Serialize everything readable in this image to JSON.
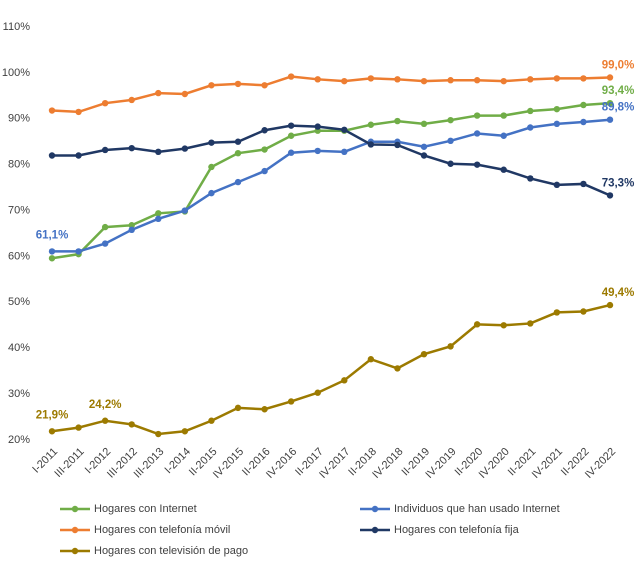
{
  "chart_data": {
    "type": "line",
    "categories": [
      "I-2011",
      "III-2011",
      "I-2012",
      "III-2012",
      "III-2013",
      "I-2014",
      "II-2015",
      "IV-2015",
      "II-2016",
      "IV-2016",
      "II-2017",
      "IV-2017",
      "II-2018",
      "IV-2018",
      "II-2019",
      "IV-2019",
      "II-2020",
      "IV-2020",
      "II-2021",
      "IV-2021",
      "II-2022",
      "IV-2022"
    ],
    "ylim": [
      20,
      110
    ],
    "yticks": [
      {
        "value": 20,
        "label": "20%"
      },
      {
        "value": 30,
        "label": "30%"
      },
      {
        "value": 40,
        "label": "40%"
      },
      {
        "value": 50,
        "label": "50%"
      },
      {
        "value": 60,
        "label": "60%"
      },
      {
        "value": 70,
        "label": "70%"
      },
      {
        "value": 80,
        "label": "80%"
      },
      {
        "value": 90,
        "label": "90%"
      },
      {
        "value": 100,
        "label": "100%"
      },
      {
        "value": 110,
        "label": "110%"
      }
    ],
    "legend": "bottom",
    "series": [
      {
        "name": "Hogares con Internet",
        "color": "#70ad47",
        "values": [
          59.6,
          60.5,
          66.4,
          66.8,
          69.4,
          69.8,
          79.5,
          82.5,
          83.3,
          86.3,
          87.4,
          87.4,
          88.7,
          89.5,
          88.9,
          89.7,
          90.7,
          90.7,
          91.7,
          92.1,
          93.0,
          93.4
        ],
        "value_labels": [
          null,
          null,
          null,
          null,
          null,
          null,
          null,
          null,
          null,
          null,
          null,
          null,
          null,
          null,
          null,
          null,
          null,
          null,
          null,
          null,
          null,
          "93,4%"
        ]
      },
      {
        "name": "Individuos que han usado Internet",
        "color": "#4472c4",
        "values": [
          61.1,
          61.1,
          62.8,
          65.8,
          68.2,
          70.0,
          73.8,
          76.2,
          78.6,
          82.6,
          83.0,
          82.8,
          85.0,
          85.0,
          83.9,
          85.2,
          86.8,
          86.3,
          88.1,
          88.9,
          89.3,
          89.8
        ],
        "value_labels": [
          "61,1%",
          null,
          null,
          null,
          null,
          null,
          null,
          null,
          null,
          null,
          null,
          null,
          null,
          null,
          null,
          null,
          null,
          null,
          null,
          null,
          null,
          "89,8%"
        ]
      },
      {
        "name": "Hogares con telefonía móvil",
        "color": "#ed7d31",
        "values": [
          91.8,
          91.5,
          93.4,
          94.1,
          95.6,
          95.4,
          97.3,
          97.6,
          97.3,
          99.2,
          98.6,
          98.2,
          98.8,
          98.6,
          98.2,
          98.4,
          98.4,
          98.2,
          98.6,
          98.8,
          98.8,
          99.0
        ],
        "value_labels": [
          null,
          null,
          null,
          null,
          null,
          null,
          null,
          null,
          null,
          null,
          null,
          null,
          null,
          null,
          null,
          null,
          null,
          null,
          null,
          null,
          null,
          "99,0%"
        ]
      },
      {
        "name": "Hogares con telefonía fija",
        "color": "#203864",
        "values": [
          82.0,
          82.0,
          83.2,
          83.6,
          82.8,
          83.5,
          84.8,
          85.0,
          87.5,
          88.5,
          88.3,
          87.6,
          84.4,
          84.3,
          82.0,
          80.2,
          80.0,
          78.9,
          77.0,
          75.6,
          75.8,
          73.3
        ],
        "value_labels": [
          null,
          null,
          null,
          null,
          null,
          null,
          null,
          null,
          null,
          null,
          null,
          null,
          null,
          null,
          null,
          null,
          null,
          null,
          null,
          null,
          null,
          "73,3%"
        ]
      },
      {
        "name": "Hogares con televisión de pago",
        "color": "#9c7a00",
        "values": [
          21.9,
          22.7,
          24.2,
          23.4,
          21.3,
          21.9,
          24.2,
          27.0,
          26.7,
          28.4,
          30.3,
          33.0,
          37.6,
          35.6,
          38.7,
          40.4,
          45.2,
          45.0,
          45.4,
          47.8,
          48.0,
          49.4
        ],
        "value_labels": [
          "21,9%",
          null,
          "24,2%",
          null,
          null,
          null,
          null,
          null,
          null,
          null,
          null,
          null,
          null,
          null,
          null,
          null,
          null,
          null,
          null,
          null,
          null,
          "49,4%"
        ]
      }
    ]
  }
}
